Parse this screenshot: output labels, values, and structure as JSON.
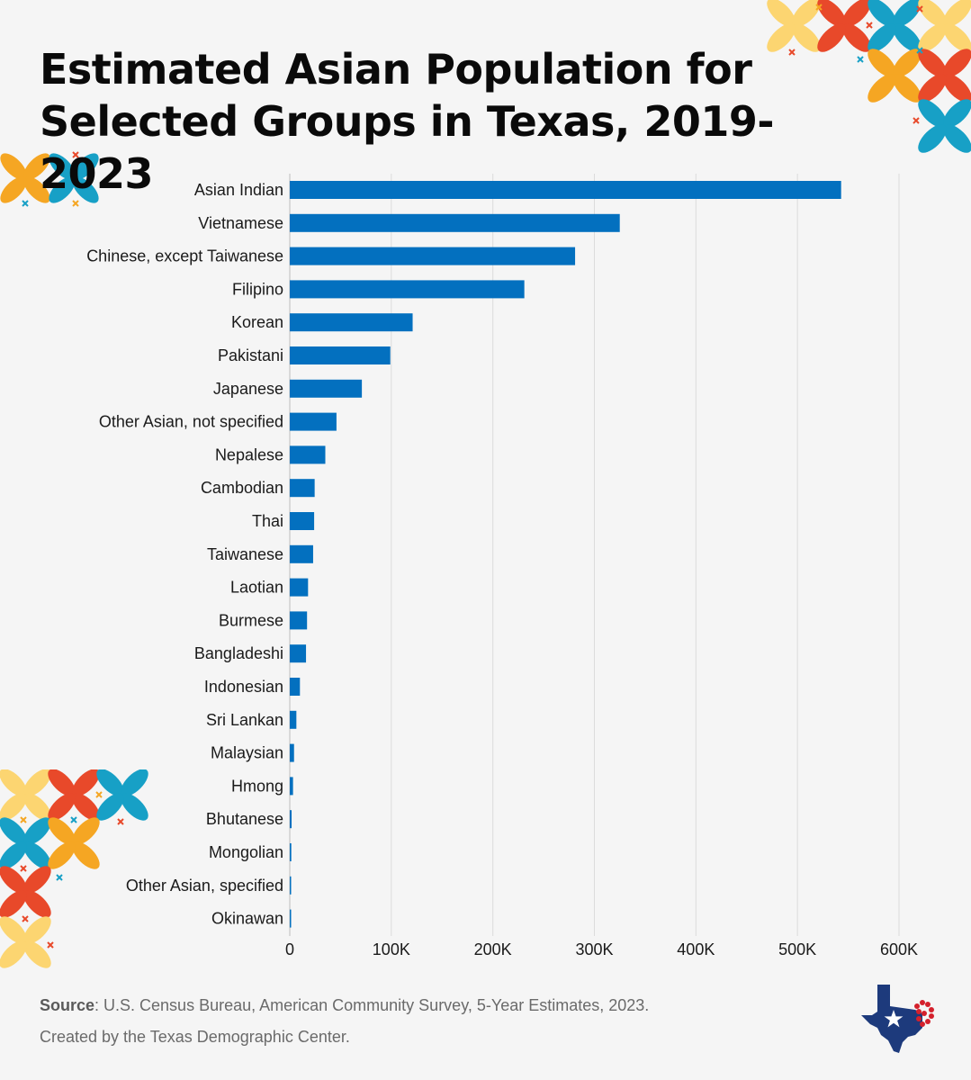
{
  "title_line1": "Estimated Asian Population for",
  "title_line2": "Selected Groups in Texas, 2019-2023",
  "chart_data": {
    "type": "bar",
    "orientation": "horizontal",
    "title": "Estimated Asian Population for Selected Groups in Texas, 2019-2023",
    "xlabel": "",
    "ylabel": "",
    "xlim": [
      0,
      600000
    ],
    "x_ticks": [
      0,
      100000,
      200000,
      300000,
      400000,
      500000,
      600000
    ],
    "x_tick_labels": [
      "0",
      "100K",
      "200K",
      "300K",
      "400K",
      "500K",
      "600K"
    ],
    "grid": true,
    "bar_color": "#0370bf",
    "categories": [
      "Asian Indian",
      "Vietnamese",
      "Chinese, except Taiwanese",
      "Filipino",
      "Korean",
      "Pakistani",
      "Japanese",
      "Other Asian, not specified",
      "Nepalese",
      "Cambodian",
      "Thai",
      "Taiwanese",
      "Laotian",
      "Burmese",
      "Bangladeshi",
      "Indonesian",
      "Sri Lankan",
      "Malaysian",
      "Hmong",
      "Bhutanese",
      "Mongolian",
      "Other Asian, specified",
      "Okinawan"
    ],
    "values": [
      543000,
      325000,
      281000,
      231000,
      121000,
      99000,
      71000,
      46000,
      35000,
      24500,
      24000,
      23000,
      18000,
      17000,
      16000,
      10000,
      6500,
      4200,
      3200,
      1800,
      1500,
      1200,
      900
    ]
  },
  "footer": {
    "source_label": "Source",
    "source_text": ": U.S. Census Bureau, American Community Survey, 5-Year Estimates, 2023.",
    "created_by": "Created by the Texas Demographic Center."
  },
  "colors": {
    "background": "#f5f5f5",
    "bar": "#0370bf",
    "grid": "#dcdcdc",
    "deco_yellow": "#fcd571",
    "deco_orange": "#f5a623",
    "deco_red": "#e8492a",
    "deco_teal": "#17a0c6",
    "logo_navy": "#1d3a7c",
    "logo_red": "#d4202c"
  }
}
